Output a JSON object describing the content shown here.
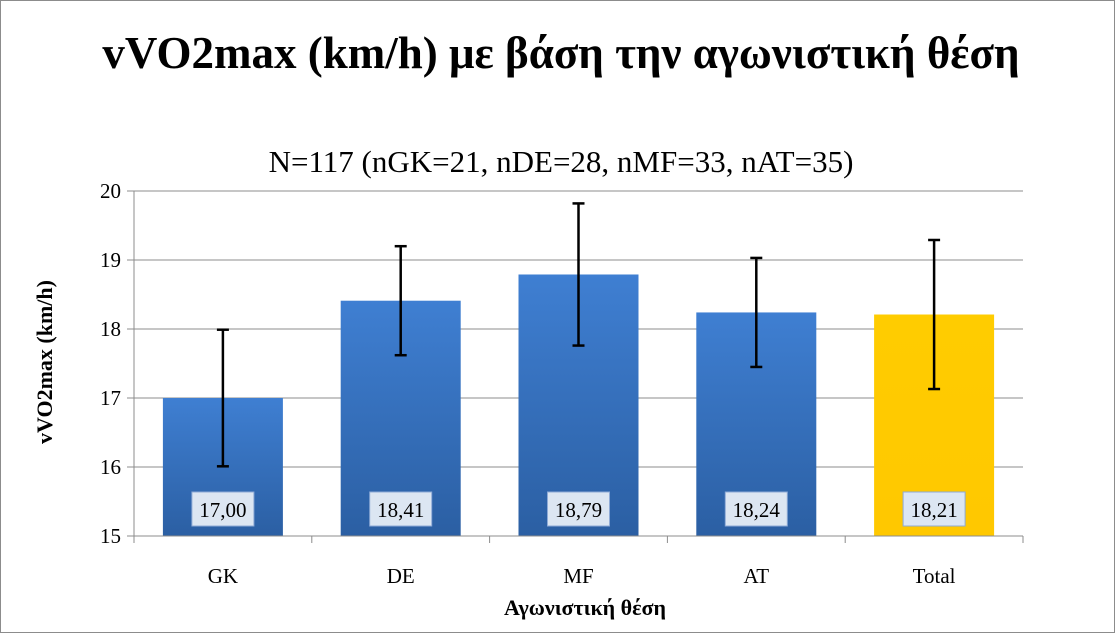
{
  "chart_data": {
    "type": "bar",
    "title": "vVO2max (km/h) με βάση την αγωνιστική θέση",
    "subtitle": "N=117 (nGK=21, nDE=28, nMF=33, nAT=35)",
    "xlabel": "Αγωνιστική θέση",
    "ylabel": "vVO2max (km/h)",
    "ylim": [
      15,
      20
    ],
    "yticks": [
      15,
      16,
      17,
      18,
      19,
      20
    ],
    "ytick_labels": [
      "15",
      "16",
      "17",
      "18",
      "19",
      "20"
    ],
    "grid": true,
    "legend": "none",
    "categories": [
      "GK",
      "DE",
      "MF",
      "AT",
      "Total"
    ],
    "values": [
      17.0,
      18.41,
      18.79,
      18.24,
      18.21
    ],
    "value_labels": [
      "17,00",
      "18,41",
      "18,79",
      "18,24",
      "18,21"
    ],
    "error_bars": [
      {
        "low": 16.01,
        "high": 17.99
      },
      {
        "low": 17.62,
        "high": 19.2
      },
      {
        "low": 17.76,
        "high": 19.82
      },
      {
        "low": 17.45,
        "high": 19.03
      },
      {
        "low": 17.13,
        "high": 19.29
      }
    ],
    "colors": [
      "#3a78c9",
      "#3a78c9",
      "#3a78c9",
      "#3a78c9",
      "#ffcc00"
    ]
  }
}
